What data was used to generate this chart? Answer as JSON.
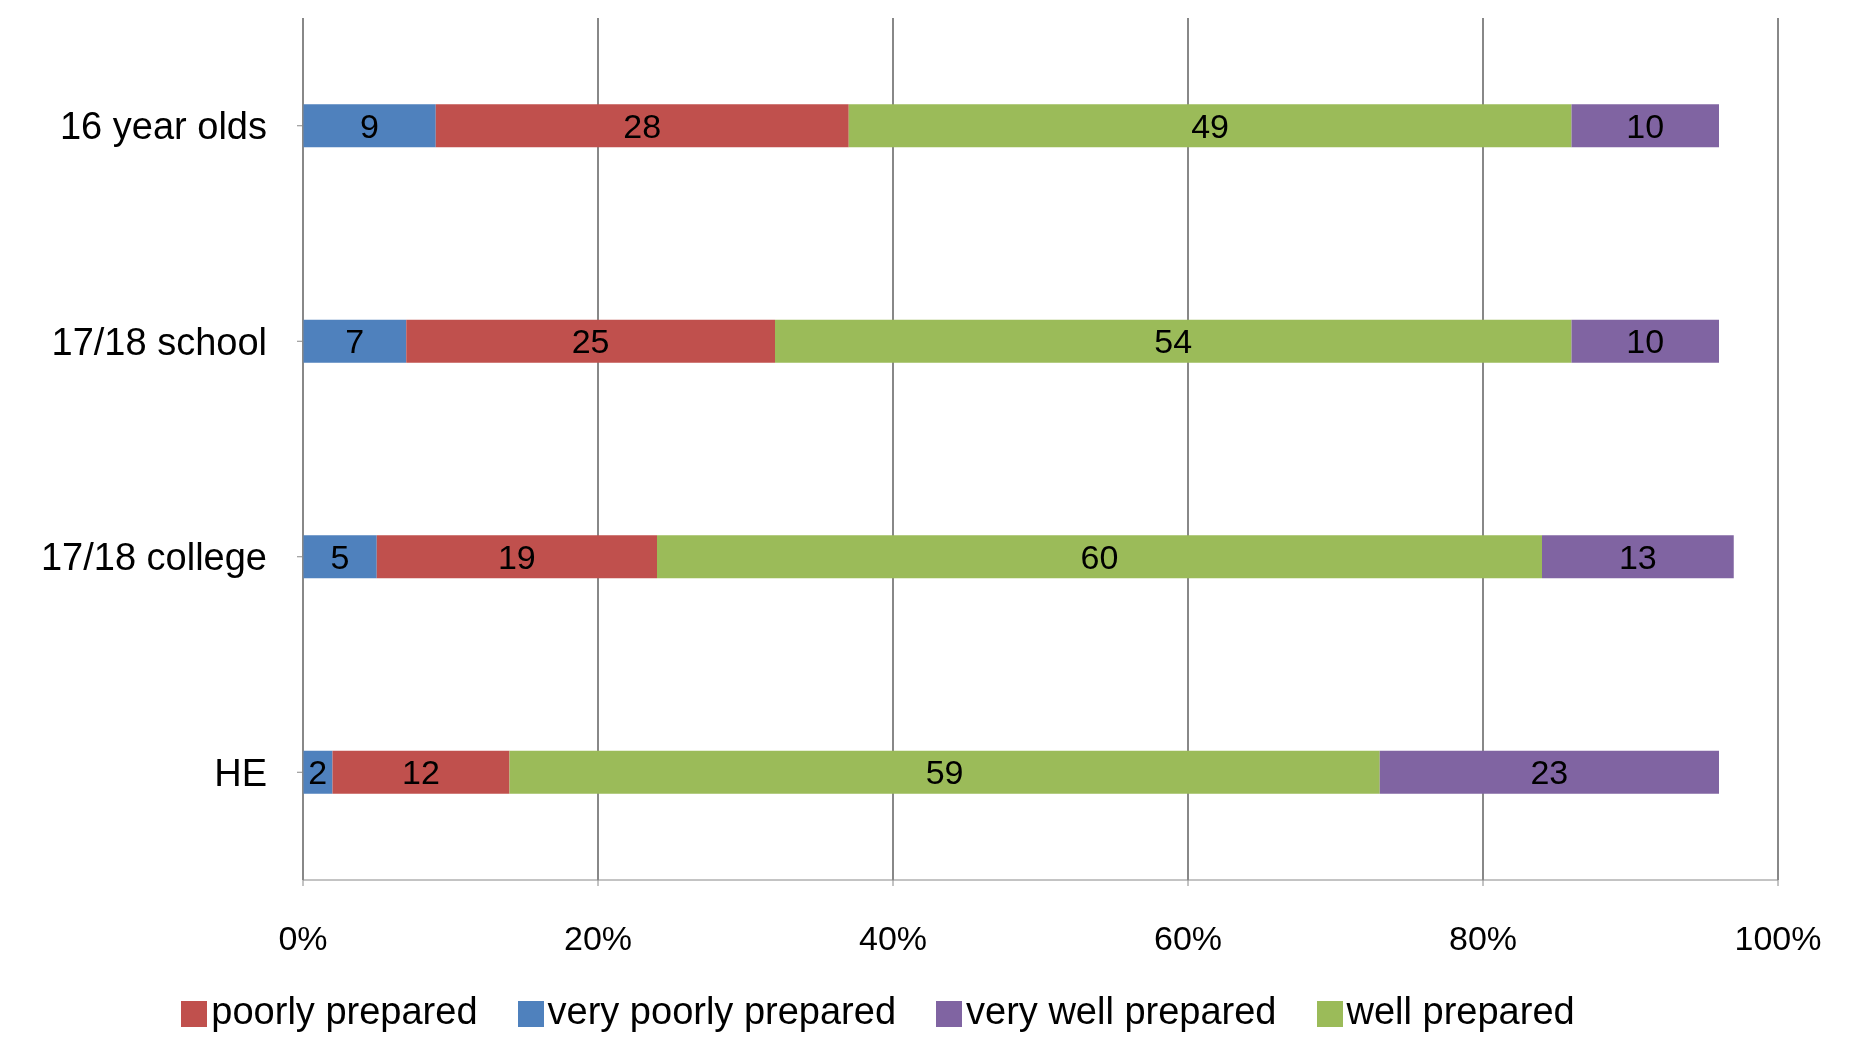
{
  "chart_data": {
    "type": "bar",
    "orientation": "horizontal",
    "stacked": true,
    "categories": [
      "16 year olds",
      "17/18 school",
      "17/18 college",
      "HE"
    ],
    "series": [
      {
        "name": "very poorly prepared",
        "color": "#4f81bd",
        "values": [
          9,
          7,
          5,
          2
        ]
      },
      {
        "name": "poorly prepared",
        "color": "#c0504d",
        "values": [
          28,
          25,
          19,
          12
        ]
      },
      {
        "name": "well prepared",
        "color": "#9bbb59",
        "values": [
          49,
          54,
          60,
          59
        ]
      },
      {
        "name": "very well prepared",
        "color": "#8064a2",
        "values": [
          10,
          10,
          13,
          23
        ]
      }
    ],
    "xlim": [
      0,
      100
    ],
    "xticks": [
      {
        "value": 0,
        "label": "0%"
      },
      {
        "value": 20,
        "label": "20%"
      },
      {
        "value": 40,
        "label": "40%"
      },
      {
        "value": 60,
        "label": "60%"
      },
      {
        "value": 80,
        "label": "80%"
      },
      {
        "value": 100,
        "label": "100%"
      }
    ],
    "grid": "x",
    "legend": "bottom",
    "data_labels": true
  }
}
